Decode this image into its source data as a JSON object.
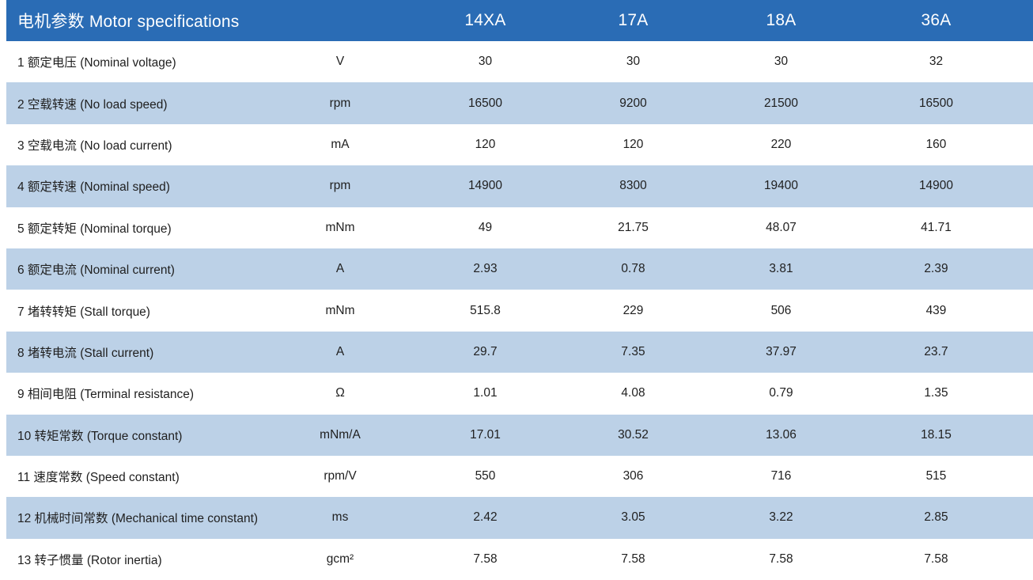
{
  "table": {
    "title": "电机参数 Motor specifications",
    "columns": [
      "14XA",
      "17A",
      "18A",
      "36A"
    ],
    "rows": [
      {
        "label": "1 额定电压 (Nominal voltage)",
        "unit": "V",
        "values": [
          "30",
          "30",
          "30",
          "32"
        ]
      },
      {
        "label": "2 空载转速 (No load speed)",
        "unit": "rpm",
        "values": [
          "16500",
          "9200",
          "21500",
          "16500"
        ]
      },
      {
        "label": "3 空载电流 (No load current)",
        "unit": "mA",
        "values": [
          "120",
          "120",
          "220",
          "160"
        ]
      },
      {
        "label": "4 额定转速 (Nominal speed)",
        "unit": "rpm",
        "values": [
          "14900",
          "8300",
          "19400",
          "14900"
        ]
      },
      {
        "label": "5 额定转矩 (Nominal torque)",
        "unit": "mNm",
        "values": [
          "49",
          "21.75",
          "48.07",
          "41.71"
        ]
      },
      {
        "label": "6 额定电流 (Nominal current)",
        "unit": "A",
        "values": [
          "2.93",
          "0.78",
          "3.81",
          "2.39"
        ]
      },
      {
        "label": "7 堵转转矩 (Stall torque)",
        "unit": "mNm",
        "values": [
          "515.8",
          "229",
          "506",
          "439"
        ]
      },
      {
        "label": "8 堵转电流 (Stall current)",
        "unit": "A",
        "values": [
          "29.7",
          "7.35",
          "37.97",
          "23.7"
        ]
      },
      {
        "label": "9 相间电阻 (Terminal resistance)",
        "unit": "Ω",
        "values": [
          "1.01",
          "4.08",
          "0.79",
          "1.35"
        ]
      },
      {
        "label": "10 转矩常数 (Torque constant)",
        "unit": "mNm/A",
        "values": [
          "17.01",
          "30.52",
          "13.06",
          "18.15"
        ]
      },
      {
        "label": "11 速度常数 (Speed constant)",
        "unit": "rpm/V",
        "values": [
          "550",
          "306",
          "716",
          "515"
        ]
      },
      {
        "label": "12 机械时间常数 (Mechanical time constant)",
        "unit": "ms",
        "values": [
          "2.42",
          "3.05",
          "3.22",
          "2.85"
        ]
      },
      {
        "label": "13 转子惯量 (Rotor inertia)",
        "unit": "gcm²",
        "values": [
          "7.58",
          "7.58",
          "7.58",
          "7.58"
        ]
      }
    ]
  },
  "colors": {
    "header_bg": "#2a6cb5",
    "header_text": "#ffffff",
    "row_alt_bg": "#bcd1e7",
    "body_text": "#1f1f1f"
  }
}
